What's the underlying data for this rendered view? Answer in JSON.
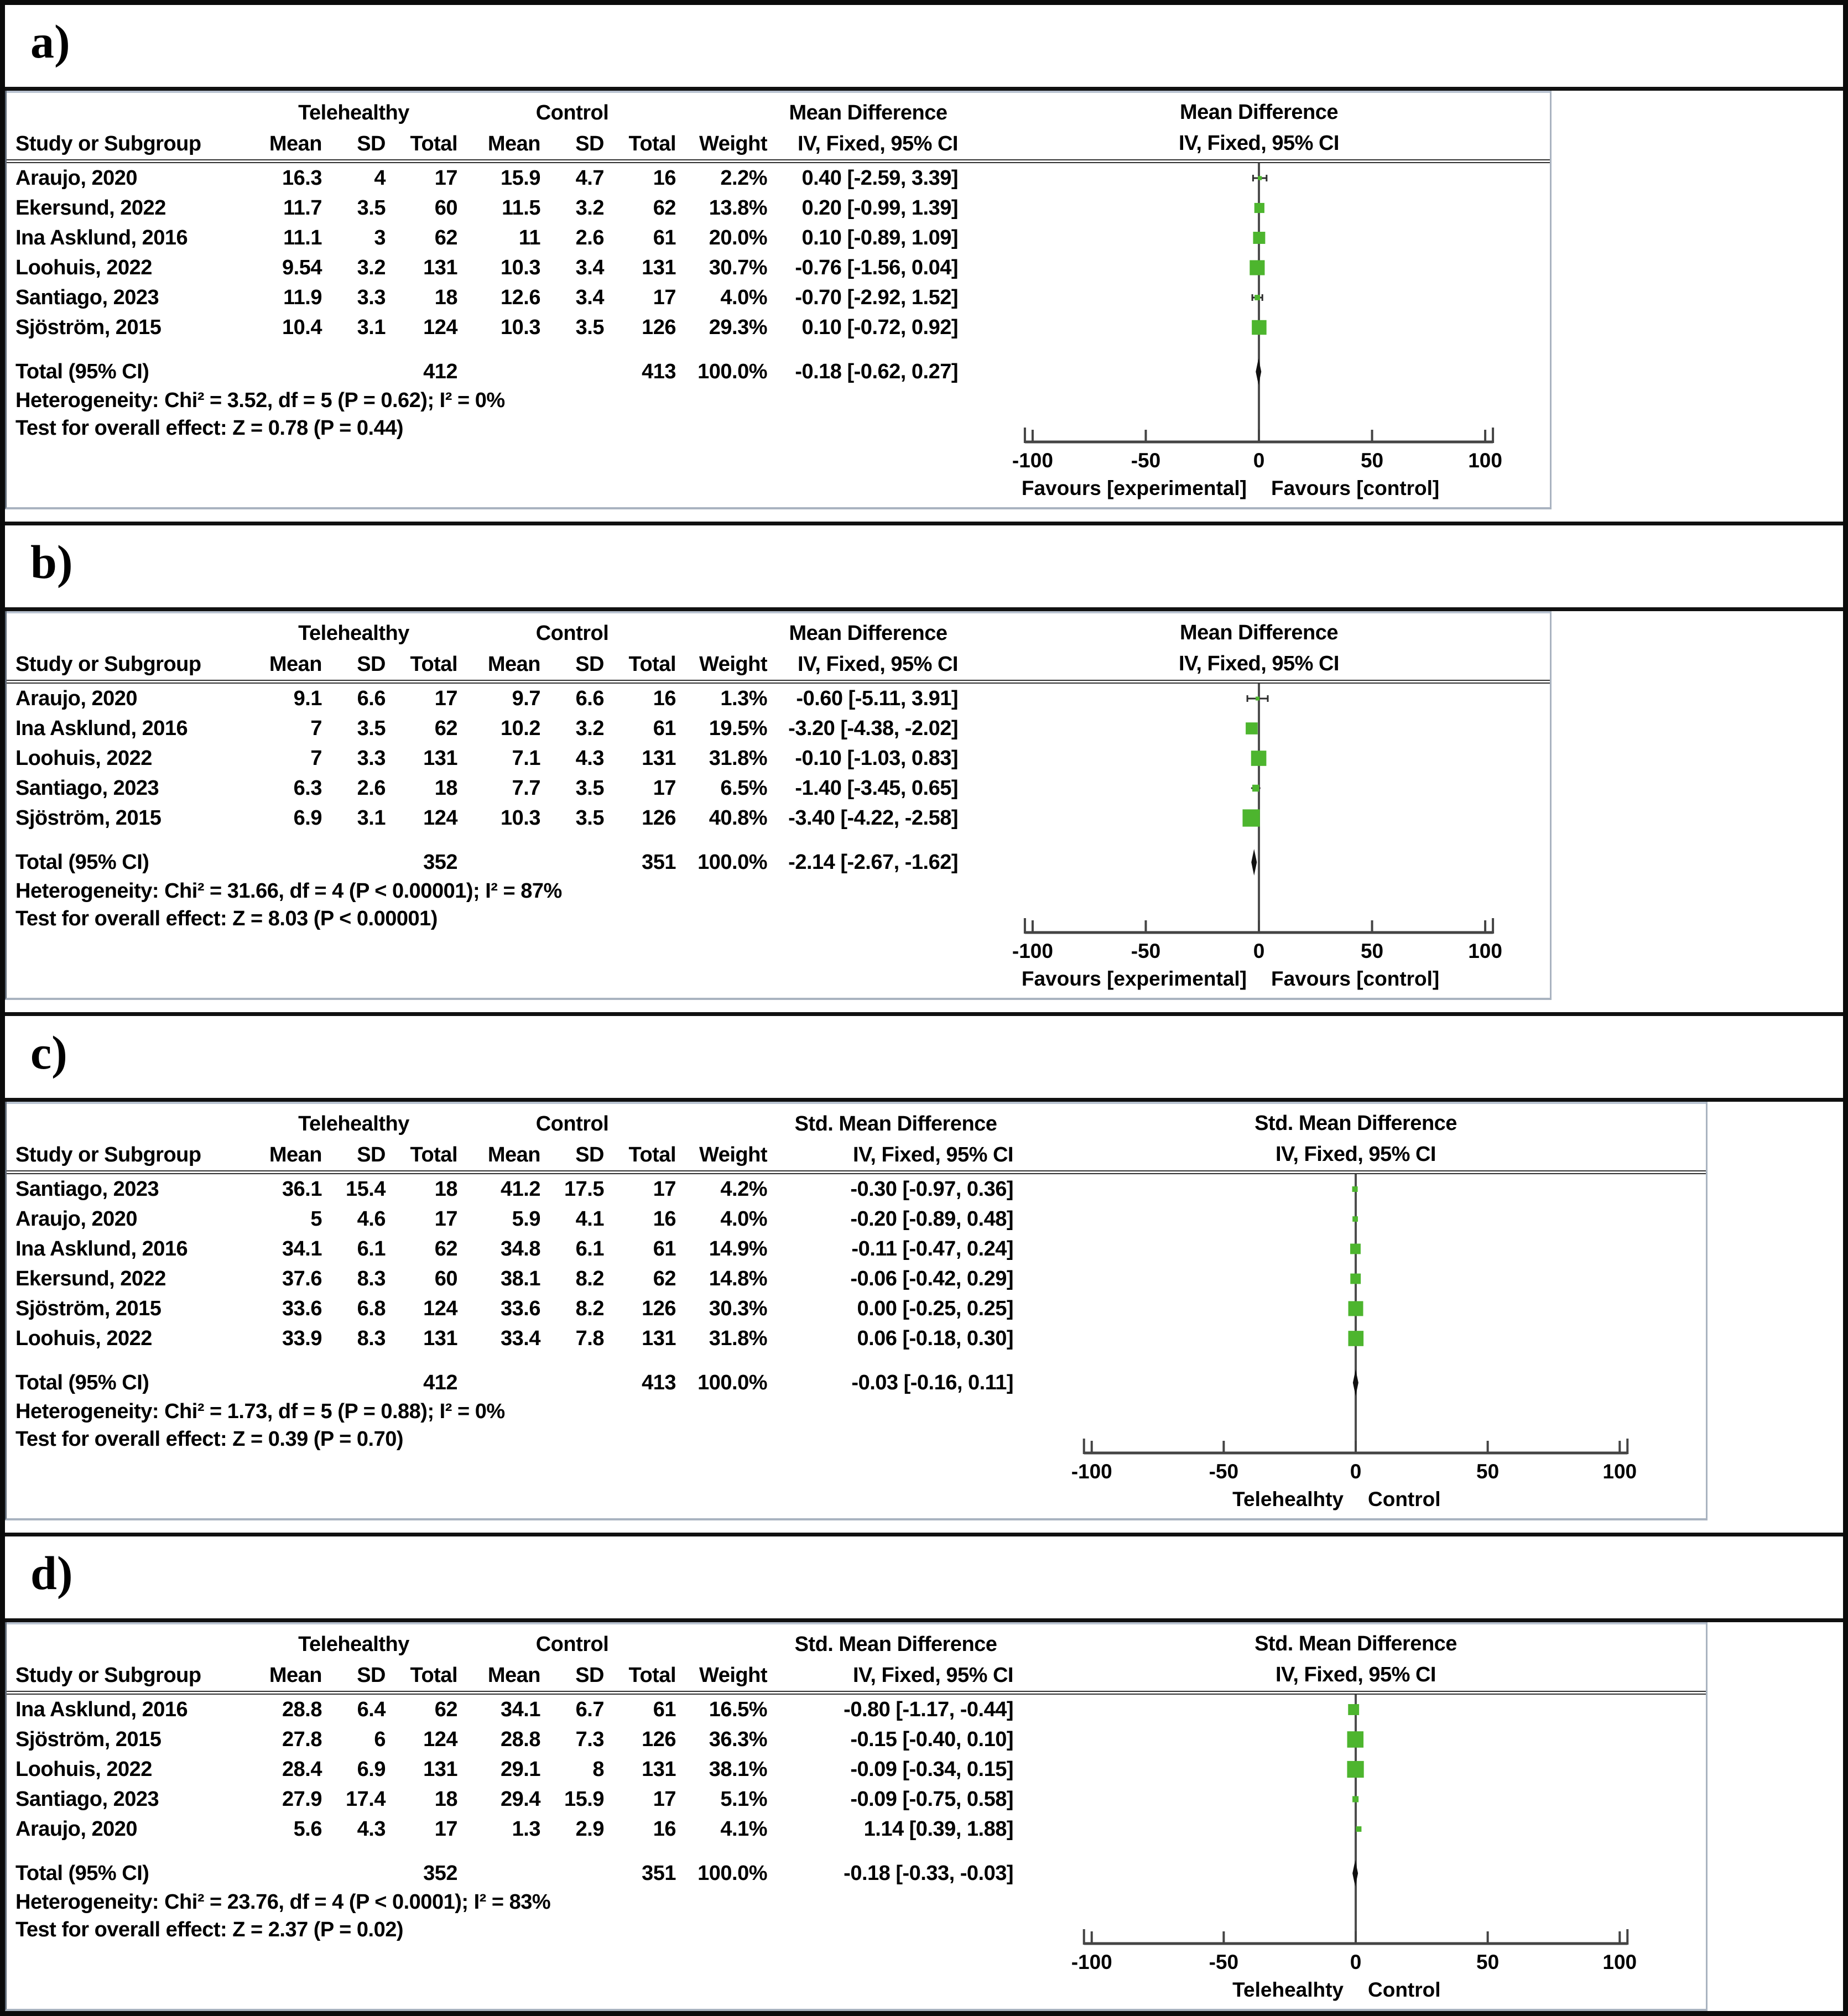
{
  "chart_data": [
    {
      "panel": "a",
      "label": "a)",
      "type": "scatter",
      "subtype": "forest-plot",
      "effect_label": "Mean Difference",
      "method_label": "IV, Fixed, 95% CI",
      "group1": "Telehealthy",
      "group2": "Control",
      "columns": [
        "Study or Subgroup",
        "Mean",
        "SD",
        "Total",
        "Mean",
        "SD",
        "Total",
        "Weight",
        "IV, Fixed, 95% CI"
      ],
      "studies": [
        {
          "name": "Araujo, 2020",
          "t_mean": "16.3",
          "t_sd": "4",
          "t_n": "17",
          "c_mean": "15.9",
          "c_sd": "4.7",
          "c_n": "16",
          "weight": "2.2%",
          "ci_text": "0.40 [-2.59, 3.39]",
          "est": 0.4,
          "lo": -2.59,
          "hi": 3.39,
          "w": 2.2
        },
        {
          "name": "Ekersund, 2022",
          "t_mean": "11.7",
          "t_sd": "3.5",
          "t_n": "60",
          "c_mean": "11.5",
          "c_sd": "3.2",
          "c_n": "62",
          "weight": "13.8%",
          "ci_text": "0.20 [-0.99, 1.39]",
          "est": 0.2,
          "lo": -0.99,
          "hi": 1.39,
          "w": 13.8
        },
        {
          "name": "Ina Asklund, 2016",
          "t_mean": "11.1",
          "t_sd": "3",
          "t_n": "62",
          "c_mean": "11",
          "c_sd": "2.6",
          "c_n": "61",
          "weight": "20.0%",
          "ci_text": "0.10 [-0.89, 1.09]",
          "est": 0.1,
          "lo": -0.89,
          "hi": 1.09,
          "w": 20.0
        },
        {
          "name": "Loohuis, 2022",
          "t_mean": "9.54",
          "t_sd": "3.2",
          "t_n": "131",
          "c_mean": "10.3",
          "c_sd": "3.4",
          "c_n": "131",
          "weight": "30.7%",
          "ci_text": "-0.76 [-1.56, 0.04]",
          "est": -0.76,
          "lo": -1.56,
          "hi": 0.04,
          "w": 30.7
        },
        {
          "name": "Santiago, 2023",
          "t_mean": "11.9",
          "t_sd": "3.3",
          "t_n": "18",
          "c_mean": "12.6",
          "c_sd": "3.4",
          "c_n": "17",
          "weight": "4.0%",
          "ci_text": "-0.70 [-2.92, 1.52]",
          "est": -0.7,
          "lo": -2.92,
          "hi": 1.52,
          "w": 4.0
        },
        {
          "name": "Sjöström, 2015",
          "t_mean": "10.4",
          "t_sd": "3.1",
          "t_n": "124",
          "c_mean": "10.3",
          "c_sd": "3.5",
          "c_n": "126",
          "weight": "29.3%",
          "ci_text": "0.10 [-0.72, 0.92]",
          "est": 0.1,
          "lo": -0.72,
          "hi": 0.92,
          "w": 29.3
        }
      ],
      "total_label": "Total (95% CI)",
      "total": {
        "t_n": "412",
        "c_n": "413",
        "weight": "100.0%",
        "ci_text": "-0.18 [-0.62, 0.27]",
        "est": -0.18,
        "lo": -0.62,
        "hi": 0.27
      },
      "heterogeneity": "Heterogeneity: Chi² = 3.52, df = 5 (P = 0.62); I² = 0%",
      "overall_test": "Test for overall effect: Z = 0.78 (P = 0.44)",
      "xticks": [
        -100,
        -50,
        0,
        50,
        100
      ],
      "xlim": [
        -110,
        110
      ],
      "axis_left_label": "Favours [experimental]",
      "axis_right_label": "Favours [control]",
      "marker_color": "#4db52e",
      "wide": false
    },
    {
      "panel": "b",
      "label": "b)",
      "type": "scatter",
      "subtype": "forest-plot",
      "effect_label": "Mean Difference",
      "method_label": "IV, Fixed, 95% CI",
      "group1": "Telehealthy",
      "group2": "Control",
      "columns": [
        "Study or Subgroup",
        "Mean",
        "SD",
        "Total",
        "Mean",
        "SD",
        "Total",
        "Weight",
        "IV, Fixed, 95% CI"
      ],
      "studies": [
        {
          "name": "Araujo, 2020",
          "t_mean": "9.1",
          "t_sd": "6.6",
          "t_n": "17",
          "c_mean": "9.7",
          "c_sd": "6.6",
          "c_n": "16",
          "weight": "1.3%",
          "ci_text": "-0.60 [-5.11, 3.91]",
          "est": -0.6,
          "lo": -5.11,
          "hi": 3.91,
          "w": 1.3
        },
        {
          "name": "Ina Asklund, 2016",
          "t_mean": "7",
          "t_sd": "3.5",
          "t_n": "62",
          "c_mean": "10.2",
          "c_sd": "3.2",
          "c_n": "61",
          "weight": "19.5%",
          "ci_text": "-3.20 [-4.38, -2.02]",
          "est": -3.2,
          "lo": -4.38,
          "hi": -2.02,
          "w": 19.5
        },
        {
          "name": "Loohuis, 2022",
          "t_mean": "7",
          "t_sd": "3.3",
          "t_n": "131",
          "c_mean": "7.1",
          "c_sd": "4.3",
          "c_n": "131",
          "weight": "31.8%",
          "ci_text": "-0.10 [-1.03, 0.83]",
          "est": -0.1,
          "lo": -1.03,
          "hi": 0.83,
          "w": 31.8
        },
        {
          "name": "Santiago, 2023",
          "t_mean": "6.3",
          "t_sd": "2.6",
          "t_n": "18",
          "c_mean": "7.7",
          "c_sd": "3.5",
          "c_n": "17",
          "weight": "6.5%",
          "ci_text": "-1.40 [-3.45, 0.65]",
          "est": -1.4,
          "lo": -3.45,
          "hi": 0.65,
          "w": 6.5
        },
        {
          "name": "Sjöström, 2015",
          "t_mean": "6.9",
          "t_sd": "3.1",
          "t_n": "124",
          "c_mean": "10.3",
          "c_sd": "3.5",
          "c_n": "126",
          "weight": "40.8%",
          "ci_text": "-3.40 [-4.22, -2.58]",
          "est": -3.4,
          "lo": -4.22,
          "hi": -2.58,
          "w": 40.8
        }
      ],
      "total_label": "Total (95% CI)",
      "total": {
        "t_n": "352",
        "c_n": "351",
        "weight": "100.0%",
        "ci_text": "-2.14 [-2.67, -1.62]",
        "est": -2.14,
        "lo": -2.67,
        "hi": -1.62
      },
      "heterogeneity": "Heterogeneity: Chi² = 31.66, df = 4 (P < 0.00001); I² = 87%",
      "overall_test": "Test for overall effect: Z = 8.03 (P < 0.00001)",
      "xticks": [
        -100,
        -50,
        0,
        50,
        100
      ],
      "xlim": [
        -110,
        110
      ],
      "axis_left_label": "Favours [experimental]",
      "axis_right_label": "Favours [control]",
      "marker_color": "#4db52e",
      "wide": false
    },
    {
      "panel": "c",
      "label": "c)",
      "type": "scatter",
      "subtype": "forest-plot",
      "effect_label": "Std. Mean Difference",
      "method_label": "IV, Fixed, 95% CI",
      "group1": "Telehealthy",
      "group2": "Control",
      "columns": [
        "Study or Subgroup",
        "Mean",
        "SD",
        "Total",
        "Mean",
        "SD",
        "Total",
        "Weight",
        "IV, Fixed, 95% CI"
      ],
      "studies": [
        {
          "name": "Santiago, 2023",
          "t_mean": "36.1",
          "t_sd": "15.4",
          "t_n": "18",
          "c_mean": "41.2",
          "c_sd": "17.5",
          "c_n": "17",
          "weight": "4.2%",
          "ci_text": "-0.30 [-0.97, 0.36]",
          "est": -0.3,
          "lo": -0.97,
          "hi": 0.36,
          "w": 4.2
        },
        {
          "name": "Araujo, 2020",
          "t_mean": "5",
          "t_sd": "4.6",
          "t_n": "17",
          "c_mean": "5.9",
          "c_sd": "4.1",
          "c_n": "16",
          "weight": "4.0%",
          "ci_text": "-0.20 [-0.89, 0.48]",
          "est": -0.2,
          "lo": -0.89,
          "hi": 0.48,
          "w": 4.0
        },
        {
          "name": "Ina Asklund, 2016",
          "t_mean": "34.1",
          "t_sd": "6.1",
          "t_n": "62",
          "c_mean": "34.8",
          "c_sd": "6.1",
          "c_n": "61",
          "weight": "14.9%",
          "ci_text": "-0.11 [-0.47, 0.24]",
          "est": -0.11,
          "lo": -0.47,
          "hi": 0.24,
          "w": 14.9
        },
        {
          "name": "Ekersund, 2022",
          "t_mean": "37.6",
          "t_sd": "8.3",
          "t_n": "60",
          "c_mean": "38.1",
          "c_sd": "8.2",
          "c_n": "62",
          "weight": "14.8%",
          "ci_text": "-0.06 [-0.42, 0.29]",
          "est": -0.06,
          "lo": -0.42,
          "hi": 0.29,
          "w": 14.8
        },
        {
          "name": "Sjöström, 2015",
          "t_mean": "33.6",
          "t_sd": "6.8",
          "t_n": "124",
          "c_mean": "33.6",
          "c_sd": "8.2",
          "c_n": "126",
          "weight": "30.3%",
          "ci_text": "0.00 [-0.25, 0.25]",
          "est": 0.0,
          "lo": -0.25,
          "hi": 0.25,
          "w": 30.3
        },
        {
          "name": "Loohuis, 2022",
          "t_mean": "33.9",
          "t_sd": "8.3",
          "t_n": "131",
          "c_mean": "33.4",
          "c_sd": "7.8",
          "c_n": "131",
          "weight": "31.8%",
          "ci_text": "0.06 [-0.18, 0.30]",
          "est": 0.06,
          "lo": -0.18,
          "hi": 0.3,
          "w": 31.8
        }
      ],
      "total_label": "Total (95% CI)",
      "total": {
        "t_n": "412",
        "c_n": "413",
        "weight": "100.0%",
        "ci_text": "-0.03 [-0.16, 0.11]",
        "est": -0.03,
        "lo": -0.16,
        "hi": 0.11
      },
      "heterogeneity": "Heterogeneity: Chi² = 1.73, df = 5 (P = 0.88); I² = 0%",
      "overall_test": "Test for overall effect: Z = 0.39 (P = 0.70)",
      "xticks": [
        -100,
        -50,
        0,
        50,
        100
      ],
      "xlim": [
        -110,
        110
      ],
      "axis_left_label": "Telehealhty",
      "axis_right_label": "Control",
      "marker_color": "#4db52e",
      "wide": true
    },
    {
      "panel": "d",
      "label": "d)",
      "type": "scatter",
      "subtype": "forest-plot",
      "effect_label": "Std. Mean Difference",
      "method_label": "IV, Fixed, 95% CI",
      "group1": "Telehealthy",
      "group2": "Control",
      "columns": [
        "Study or Subgroup",
        "Mean",
        "SD",
        "Total",
        "Mean",
        "SD",
        "Total",
        "Weight",
        "IV, Fixed, 95% CI"
      ],
      "studies": [
        {
          "name": "Ina Asklund, 2016",
          "t_mean": "28.8",
          "t_sd": "6.4",
          "t_n": "62",
          "c_mean": "34.1",
          "c_sd": "6.7",
          "c_n": "61",
          "weight": "16.5%",
          "ci_text": "-0.80 [-1.17, -0.44]",
          "est": -0.8,
          "lo": -1.17,
          "hi": -0.44,
          "w": 16.5
        },
        {
          "name": "Sjöström, 2015",
          "t_mean": "27.8",
          "t_sd": "6",
          "t_n": "124",
          "c_mean": "28.8",
          "c_sd": "7.3",
          "c_n": "126",
          "weight": "36.3%",
          "ci_text": "-0.15 [-0.40, 0.10]",
          "est": -0.15,
          "lo": -0.4,
          "hi": 0.1,
          "w": 36.3
        },
        {
          "name": "Loohuis, 2022",
          "t_mean": "28.4",
          "t_sd": "6.9",
          "t_n": "131",
          "c_mean": "29.1",
          "c_sd": "8",
          "c_n": "131",
          "weight": "38.1%",
          "ci_text": "-0.09 [-0.34, 0.15]",
          "est": -0.09,
          "lo": -0.34,
          "hi": 0.15,
          "w": 38.1
        },
        {
          "name": "Santiago, 2023",
          "t_mean": "27.9",
          "t_sd": "17.4",
          "t_n": "18",
          "c_mean": "29.4",
          "c_sd": "15.9",
          "c_n": "17",
          "weight": "5.1%",
          "ci_text": "-0.09 [-0.75, 0.58]",
          "est": -0.09,
          "lo": -0.75,
          "hi": 0.58,
          "w": 5.1
        },
        {
          "name": "Araujo, 2020",
          "t_mean": "5.6",
          "t_sd": "4.3",
          "t_n": "17",
          "c_mean": "1.3",
          "c_sd": "2.9",
          "c_n": "16",
          "weight": "4.1%",
          "ci_text": "1.14 [0.39, 1.88]",
          "est": 1.14,
          "lo": 0.39,
          "hi": 1.88,
          "w": 4.1
        }
      ],
      "total_label": "Total (95% CI)",
      "total": {
        "t_n": "352",
        "c_n": "351",
        "weight": "100.0%",
        "ci_text": "-0.18 [-0.33, -0.03]",
        "est": -0.18,
        "lo": -0.33,
        "hi": -0.03
      },
      "heterogeneity": "Heterogeneity: Chi² = 23.76, df = 4 (P < 0.0001); I² = 83%",
      "overall_test": "Test for overall effect: Z = 2.37 (P = 0.02)",
      "xticks": [
        -100,
        -50,
        0,
        50,
        100
      ],
      "xlim": [
        -110,
        110
      ],
      "axis_left_label": "Telehealhty",
      "axis_right_label": "Control",
      "marker_color": "#4db52e",
      "wide": true
    }
  ]
}
